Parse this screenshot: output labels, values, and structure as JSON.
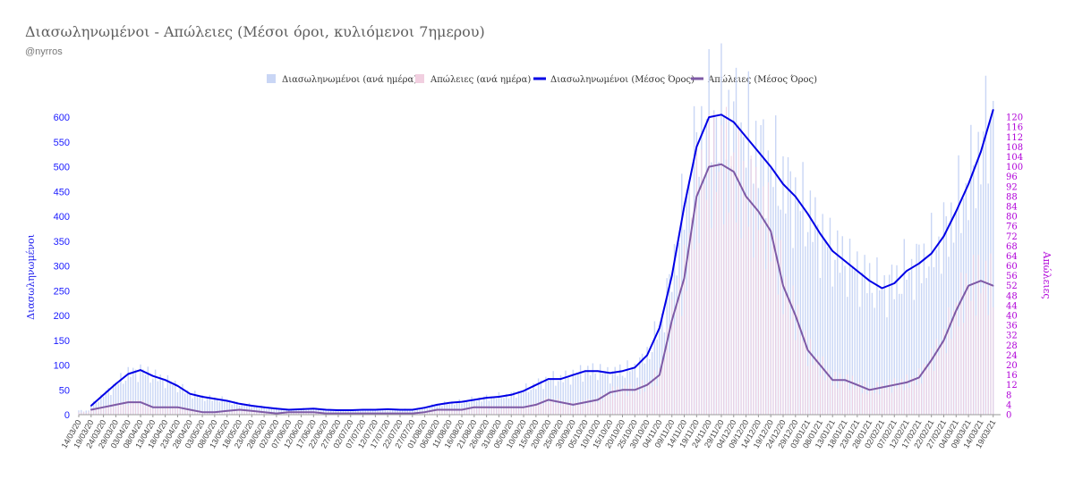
{
  "header": {
    "title": "Διασωληνωμένοι - Απώλειες (Μέσοι όροι, κυλιόμενοι 7ημερου)",
    "subtitle": "@nyrros"
  },
  "colors": {
    "intubated_bar": "#c9d6f5",
    "deaths_bar": "#f1cfe0",
    "intubated_line": "#0000e6",
    "deaths_line": "#7e5aa6",
    "left_axis": "#1a1aff",
    "right_axis": "#b000d8"
  },
  "chart_data": {
    "type": "line",
    "title": "Διασωληνωμένοι - Απώλειες (Μέσοι όροι, κυλιόμενοι 7ημερου)",
    "ylabel": "Διασωληνωμένοι",
    "y2label": "Απώλειες",
    "ylim": [
      0,
      620
    ],
    "y2lim": [
      0,
      124
    ],
    "y_ticks": [
      0,
      50,
      100,
      150,
      200,
      250,
      300,
      350,
      400,
      450,
      500,
      550,
      600
    ],
    "y2_ticks": [
      0,
      4,
      8,
      12,
      16,
      20,
      24,
      28,
      32,
      36,
      40,
      44,
      48,
      52,
      56,
      60,
      64,
      68,
      72,
      76,
      80,
      84,
      88,
      92,
      96,
      100,
      104,
      108,
      112,
      116,
      120
    ],
    "legend_position": "top-center",
    "legend": [
      {
        "label": "Διασωληνωμένοι (ανά ημέρα)",
        "kind": "bar",
        "color": "#c9d6f5"
      },
      {
        "label": "Απώλειες (ανά ημέρα)",
        "kind": "bar",
        "color": "#f1cfe0"
      },
      {
        "label": "Διασωληνωμένοι (Μέσος Όρος)",
        "kind": "line",
        "color": "#0000e6"
      },
      {
        "label": "Απώλειες (Μέσος Όρος)",
        "kind": "line",
        "color": "#7e5aa6"
      }
    ],
    "x_ticks": [
      "14/03/20",
      "19/03/20",
      "24/03/20",
      "29/03/20",
      "03/04/20",
      "08/04/20",
      "13/04/20",
      "18/04/20",
      "23/04/20",
      "28/04/20",
      "03/05/20",
      "08/05/20",
      "13/05/20",
      "18/05/20",
      "23/05/20",
      "28/05/20",
      "02/06/20",
      "07/06/20",
      "12/06/20",
      "17/06/20",
      "22/06/20",
      "27/06/20",
      "02/07/20",
      "07/07/20",
      "12/07/20",
      "17/07/20",
      "22/07/20",
      "27/07/20",
      "01/08/20",
      "06/08/20",
      "11/08/20",
      "16/08/20",
      "21/08/20",
      "26/08/20",
      "31/08/20",
      "05/09/20",
      "10/09/20",
      "15/09/20",
      "20/09/20",
      "25/09/20",
      "30/09/20",
      "05/10/20",
      "10/10/20",
      "15/10/20",
      "20/10/20",
      "25/10/20",
      "30/10/20",
      "04/11/20",
      "09/11/20",
      "14/11/20",
      "19/11/20",
      "24/11/20",
      "29/11/20",
      "04/12/20",
      "09/12/20",
      "14/12/20",
      "19/12/20",
      "24/12/20",
      "29/12/20",
      "03/01/21",
      "08/01/21",
      "13/01/21",
      "18/01/21",
      "23/01/21",
      "28/01/21",
      "02/02/21",
      "07/02/21",
      "12/02/21",
      "17/02/21",
      "22/02/21",
      "27/02/21",
      "04/03/21",
      "09/03/21",
      "14/03/21",
      "19/03/21"
    ],
    "series": [
      {
        "name": "Διασωληνωμένοι (Μέσος Όρος)",
        "axis": "left",
        "x": [
          "19/03/20",
          "24/03/20",
          "29/03/20",
          "03/04/20",
          "08/04/20",
          "13/04/20",
          "18/04/20",
          "23/04/20",
          "28/04/20",
          "03/05/20",
          "08/05/20",
          "13/05/20",
          "18/05/20",
          "23/05/20",
          "28/05/20",
          "02/06/20",
          "07/06/20",
          "12/06/20",
          "17/06/20",
          "22/06/20",
          "27/06/20",
          "02/07/20",
          "07/07/20",
          "12/07/20",
          "17/07/20",
          "22/07/20",
          "27/07/20",
          "01/08/20",
          "06/08/20",
          "11/08/20",
          "16/08/20",
          "21/08/20",
          "26/08/20",
          "31/08/20",
          "05/09/20",
          "10/09/20",
          "15/09/20",
          "20/09/20",
          "25/09/20",
          "30/09/20",
          "05/10/20",
          "10/10/20",
          "15/10/20",
          "20/10/20",
          "25/10/20",
          "30/10/20",
          "04/11/20",
          "09/11/20",
          "14/11/20",
          "19/11/20",
          "24/11/20",
          "29/11/20",
          "04/12/20",
          "09/12/20",
          "14/12/20",
          "19/12/20",
          "24/12/20",
          "29/12/20",
          "03/01/21",
          "08/01/21",
          "13/01/21",
          "18/01/21",
          "23/01/21",
          "28/01/21",
          "02/02/21",
          "07/02/21",
          "12/02/21",
          "17/02/21",
          "22/02/21",
          "27/02/21",
          "04/03/21",
          "09/03/21",
          "14/03/21",
          "19/03/21"
        ],
        "values": [
          18,
          40,
          62,
          82,
          90,
          78,
          70,
          58,
          42,
          36,
          32,
          28,
          22,
          18,
          15,
          12,
          10,
          11,
          12,
          10,
          9,
          9,
          10,
          10,
          11,
          10,
          10,
          14,
          20,
          24,
          26,
          30,
          34,
          36,
          40,
          48,
          60,
          72,
          72,
          80,
          88,
          88,
          84,
          88,
          95,
          120,
          175,
          280,
          420,
          540,
          600,
          605,
          590,
          560,
          530,
          500,
          465,
          440,
          405,
          365,
          330,
          310,
          290,
          270,
          255,
          265,
          290,
          305,
          325,
          360,
          410,
          465,
          530,
          615
        ]
      },
      {
        "name": "Απώλειες (Μέσος Όρος)",
        "axis": "right",
        "x": [
          "19/03/20",
          "24/03/20",
          "29/03/20",
          "03/04/20",
          "08/04/20",
          "13/04/20",
          "18/04/20",
          "23/04/20",
          "28/04/20",
          "03/05/20",
          "08/05/20",
          "13/05/20",
          "18/05/20",
          "23/05/20",
          "28/05/20",
          "02/06/20",
          "07/06/20",
          "12/06/20",
          "17/06/20",
          "22/06/20",
          "27/06/20",
          "02/07/20",
          "07/07/20",
          "12/07/20",
          "17/07/20",
          "22/07/20",
          "27/07/20",
          "01/08/20",
          "06/08/20",
          "11/08/20",
          "16/08/20",
          "21/08/20",
          "26/08/20",
          "31/08/20",
          "05/09/20",
          "10/09/20",
          "15/09/20",
          "20/09/20",
          "25/09/20",
          "30/09/20",
          "05/10/20",
          "10/10/20",
          "15/10/20",
          "20/10/20",
          "25/10/20",
          "30/10/20",
          "04/11/20",
          "09/11/20",
          "14/11/20",
          "19/11/20",
          "24/11/20",
          "29/11/20",
          "04/12/20",
          "09/12/20",
          "14/12/20",
          "19/12/20",
          "24/12/20",
          "29/12/20",
          "03/01/21",
          "08/01/21",
          "13/01/21",
          "18/01/21",
          "23/01/21",
          "28/01/21",
          "02/02/21",
          "07/02/21",
          "12/02/21",
          "17/02/21",
          "22/02/21",
          "27/02/21",
          "04/03/21",
          "09/03/21",
          "14/03/21",
          "19/03/21"
        ],
        "values": [
          2,
          3,
          4,
          5,
          5,
          3,
          3,
          3,
          2,
          1,
          1,
          1.5,
          2,
          1.5,
          1,
          0.5,
          1,
          1,
          1,
          0.5,
          0.5,
          0.5,
          0.5,
          0.5,
          0.5,
          0.5,
          0.5,
          1,
          2,
          2,
          2,
          3,
          3,
          3,
          3,
          3,
          4,
          6,
          5,
          4,
          5,
          6,
          9,
          10,
          10,
          12,
          16,
          38,
          55,
          88,
          100,
          101,
          98,
          88,
          82,
          74,
          52,
          40,
          26,
          20,
          14,
          14,
          12,
          10,
          11,
          12,
          13,
          15,
          22,
          30,
          42,
          52,
          54,
          52
        ]
      }
    ]
  }
}
